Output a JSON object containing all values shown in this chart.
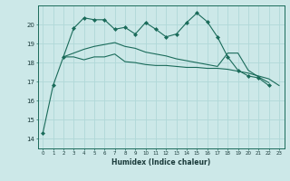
{
  "xlabel": "Humidex (Indice chaleur)",
  "x": [
    0,
    1,
    2,
    3,
    4,
    5,
    6,
    7,
    8,
    9,
    10,
    11,
    12,
    13,
    14,
    15,
    16,
    17,
    18,
    19,
    20,
    21,
    22,
    23
  ],
  "line1": [
    14.3,
    16.8,
    18.3,
    19.8,
    20.35,
    20.25,
    20.25,
    19.75,
    19.85,
    19.5,
    20.1,
    19.75,
    19.35,
    19.5,
    20.1,
    20.6,
    20.15,
    19.35,
    18.3,
    17.6,
    17.3,
    17.2,
    16.8,
    null
  ],
  "line2": [
    null,
    null,
    18.3,
    18.3,
    18.15,
    18.3,
    18.3,
    18.45,
    18.05,
    18.0,
    17.9,
    17.85,
    17.85,
    17.8,
    17.75,
    17.75,
    17.7,
    17.7,
    17.65,
    17.55,
    17.45,
    17.3,
    17.15,
    16.8
  ],
  "line3": [
    null,
    null,
    18.3,
    18.5,
    18.7,
    18.85,
    18.95,
    19.05,
    18.85,
    18.75,
    18.55,
    18.45,
    18.35,
    18.2,
    18.1,
    18.0,
    17.9,
    17.8,
    18.5,
    18.5,
    17.6,
    17.25,
    16.95,
    null
  ],
  "bg_color": "#cce8e8",
  "line_color": "#1a6b5a",
  "grid_color": "#b0d8d8",
  "ylim": [
    13.5,
    21.0
  ],
  "yticks": [
    14,
    15,
    16,
    17,
    18,
    19,
    20
  ],
  "xticks": [
    0,
    1,
    2,
    3,
    4,
    5,
    6,
    7,
    8,
    9,
    10,
    11,
    12,
    13,
    14,
    15,
    16,
    17,
    18,
    19,
    20,
    21,
    22,
    23
  ]
}
